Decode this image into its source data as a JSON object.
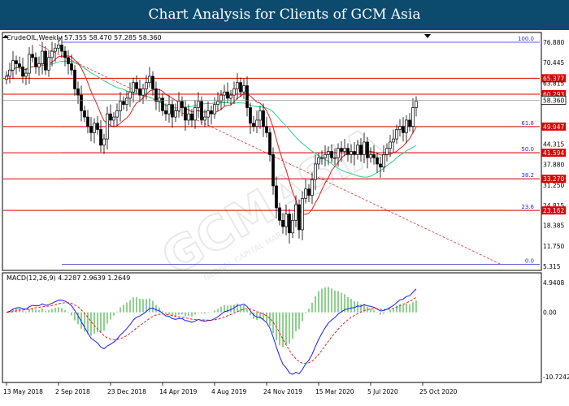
{
  "header": {
    "title": "Chart Analysis for Clients of GCM Asia"
  },
  "watermark": {
    "text": "GCMASIA",
    "sub": "GLOBAL CAPITAL MARKETS"
  },
  "chart_data": [
    {
      "type": "candlestick",
      "title": "CrudeOIL,Weekly",
      "ohlc_text": "57.355 58.470 57.285 58.360",
      "ylim": [
        5.315,
        76.88
      ],
      "y_ticks": [
        "76.880",
        "70.445",
        "65.377",
        "63.815",
        "60.293",
        "58.360",
        "49.947",
        "44.315",
        "41.594",
        "37.880",
        "33.270",
        "31.250",
        "24.815",
        "23.162",
        "18.385",
        "11.750",
        "5.315"
      ],
      "last_price": "58.360",
      "x_ticks": [
        "13 May 2018",
        "2 Sep 2018",
        "23 Dec 2018",
        "14 Apr 2019",
        "4 Aug 2019",
        "24 Nov 2019",
        "15 Mar 2020",
        "5 Jul 2020",
        "25 Oct 2020"
      ],
      "x_tick_index": [
        0,
        16,
        32,
        48,
        64,
        80,
        96,
        112,
        128
      ],
      "horizontal_levels": [
        {
          "value": 65.377,
          "label": "65.377",
          "color": "#e00000"
        },
        {
          "value": 60.293,
          "label": "60.293",
          "color": "#e00000"
        },
        {
          "value": 49.947,
          "label": "49.947",
          "color": "#e00000"
        },
        {
          "value": 41.594,
          "label": "41.594",
          "color": "#e00000"
        },
        {
          "value": 33.27,
          "label": "33.270",
          "color": "#e00000"
        },
        {
          "value": 23.162,
          "label": "23.162",
          "color": "#e00000"
        }
      ],
      "fibonacci": [
        {
          "level": "100.0",
          "value": 76.88
        },
        {
          "level": "61.8",
          "value": 49.947
        },
        {
          "level": "50.0",
          "value": 41.594
        },
        {
          "level": "38.2",
          "value": 33.27
        },
        {
          "level": "23.6",
          "value": 23.162
        },
        {
          "level": "0.0",
          "value": 6.0
        }
      ],
      "trendline": [
        {
          "x": 10,
          "y": 76.0
        },
        {
          "x": 152,
          "y": 6.0
        }
      ],
      "close": [
        66,
        68,
        71,
        70,
        69,
        66,
        67,
        73,
        72,
        69,
        70,
        74,
        68,
        72,
        74,
        75,
        76,
        74,
        72,
        70,
        68,
        62,
        60,
        55,
        53,
        50,
        48,
        51,
        49,
        44,
        46,
        54,
        52,
        53,
        55,
        58,
        57,
        59,
        61,
        64,
        62,
        60,
        62,
        64,
        66,
        62,
        58,
        59,
        55,
        54,
        57,
        53,
        55,
        58,
        56,
        52,
        54,
        52,
        56,
        58,
        52,
        53,
        55,
        54,
        57,
        58,
        60,
        61,
        59,
        60,
        62,
        64,
        61,
        63,
        56,
        51,
        50,
        52,
        55,
        50,
        48,
        41,
        31,
        24,
        20,
        18,
        22,
        16,
        20,
        25,
        17,
        27,
        30,
        28,
        33,
        38,
        40,
        40,
        41,
        42,
        40,
        40,
        43,
        42,
        43,
        41,
        42,
        41,
        44,
        41,
        45,
        40,
        41,
        40,
        38,
        37,
        41,
        43,
        45,
        46,
        49,
        50,
        48,
        52,
        50,
        56,
        58
      ]
    },
    {
      "type": "line",
      "title": "MACD(12,26,9) 4.2287 2.9639 1.2649",
      "ylim": [
        -10.7242,
        4.9408
      ],
      "y_ticks": [
        "4.9408",
        "0.00",
        "-10.7242"
      ],
      "series": [
        {
          "name": "MACD",
          "color": "#1a1aff"
        },
        {
          "name": "Signal",
          "color": "#e02020"
        },
        {
          "name": "Histogram",
          "color": "#1fa31f"
        }
      ]
    }
  ]
}
